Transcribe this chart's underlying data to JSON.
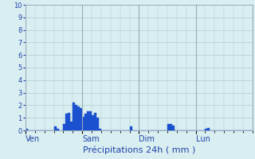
{
  "title": "Précipitations 24h ( mm )",
  "xlabel": "Précipitations 24h ( mm )",
  "ylim": [
    0,
    10
  ],
  "yticks": [
    0,
    1,
    2,
    3,
    4,
    5,
    6,
    7,
    8,
    9,
    10
  ],
  "background_color": "#d8eef0",
  "grid_color": "#b0cccc",
  "bar_color": "#1a50d0",
  "bar_edge_color": "#2255cc",
  "n_bars": 96,
  "day_labels": [
    "Ven",
    "Sam",
    "Dim",
    "Lun"
  ],
  "day_positions": [
    0,
    24,
    48,
    72
  ],
  "bar_values": [
    0.1,
    0.0,
    0.0,
    0.0,
    0.0,
    0.0,
    0.0,
    0.0,
    0.0,
    0.0,
    0.0,
    0.0,
    0.3,
    0.1,
    0.0,
    0.0,
    0.5,
    1.3,
    1.4,
    0.7,
    2.2,
    2.0,
    1.9,
    1.8,
    1.1,
    1.3,
    1.5,
    1.5,
    1.2,
    1.4,
    1.0,
    0.1,
    0.0,
    0.0,
    0.0,
    0.0,
    0.0,
    0.0,
    0.0,
    0.0,
    0.0,
    0.0,
    0.0,
    0.0,
    0.3,
    0.0,
    0.0,
    0.0,
    0.0,
    0.0,
    0.0,
    0.0,
    0.0,
    0.0,
    0.0,
    0.0,
    0.0,
    0.0,
    0.0,
    0.0,
    0.5,
    0.5,
    0.4,
    0.0,
    0.0,
    0.0,
    0.0,
    0.0,
    0.0,
    0.0,
    0.0,
    0.0,
    0.0,
    0.0,
    0.0,
    0.0,
    0.1,
    0.2,
    0.0,
    0.0,
    0.0,
    0.0,
    0.0,
    0.0,
    0.0,
    0.0,
    0.0,
    0.0,
    0.0,
    0.0,
    0.0,
    0.0,
    0.0,
    0.0,
    0.0,
    0.0
  ]
}
